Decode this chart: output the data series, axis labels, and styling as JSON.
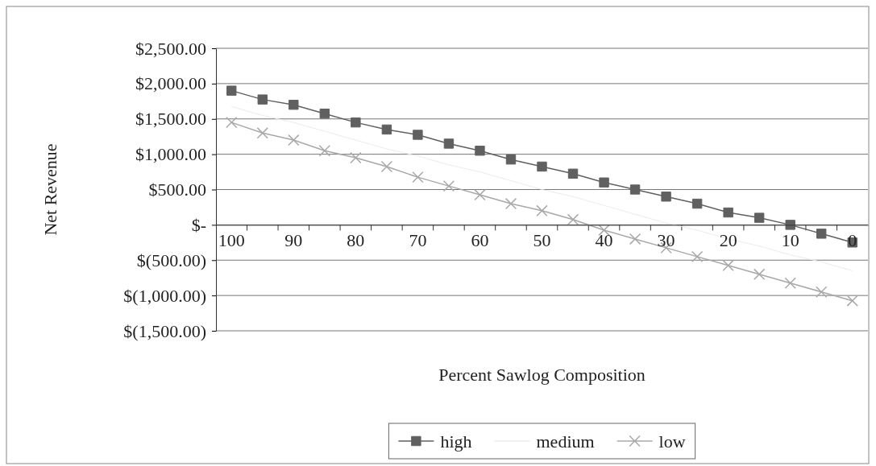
{
  "chart_data": {
    "type": "line",
    "xlabel": "Percent Sawlog Composition",
    "ylabel": "Net Revenue",
    "categories": [
      "100",
      null,
      "90",
      null,
      "80",
      null,
      "70",
      null,
      "60",
      null,
      "50",
      null,
      "40",
      null,
      "30",
      null,
      "20",
      null,
      "10",
      null,
      "0"
    ],
    "series": [
      {
        "name": "high",
        "color": "#606060",
        "marker": "square",
        "values": [
          1900,
          1775,
          1700,
          1575,
          1450,
          1350,
          1275,
          1150,
          1050,
          925,
          825,
          725,
          600,
          500,
          400,
          300,
          175,
          100,
          0,
          -125,
          -250
        ]
      },
      {
        "name": "medium",
        "color": "#ececec",
        "marker": "none",
        "values": [
          1675,
          1550,
          1450,
          1325,
          1200,
          1075,
          975,
          850,
          750,
          625,
          500,
          400,
          275,
          150,
          25,
          -75,
          -200,
          -300,
          -425,
          -525,
          -650
        ]
      },
      {
        "name": "low",
        "color": "#a8a8a8",
        "marker": "cross",
        "values": [
          1450,
          1300,
          1200,
          1050,
          950,
          825,
          675,
          550,
          425,
          300,
          200,
          75,
          -75,
          -200,
          -325,
          -450,
          -575,
          -700,
          -825,
          -950,
          -1075
        ]
      }
    ],
    "ylim": [
      -1500,
      2500
    ],
    "yticks": [
      {
        "value": -1500,
        "label": "$(1,500.00)"
      },
      {
        "value": -1000,
        "label": "$(1,000.00)"
      },
      {
        "value": -500,
        "label": "$(500.00)"
      },
      {
        "value": 0,
        "label": "$-"
      },
      {
        "value": 500,
        "label": "$500.00"
      },
      {
        "value": 1000,
        "label": "$1,000.00"
      },
      {
        "value": 1500,
        "label": "$1,500.00"
      },
      {
        "value": 2000,
        "label": "$2,000.00"
      },
      {
        "value": 2500,
        "label": "$2,500.00"
      }
    ],
    "grid": "y",
    "legend": "bottom"
  }
}
